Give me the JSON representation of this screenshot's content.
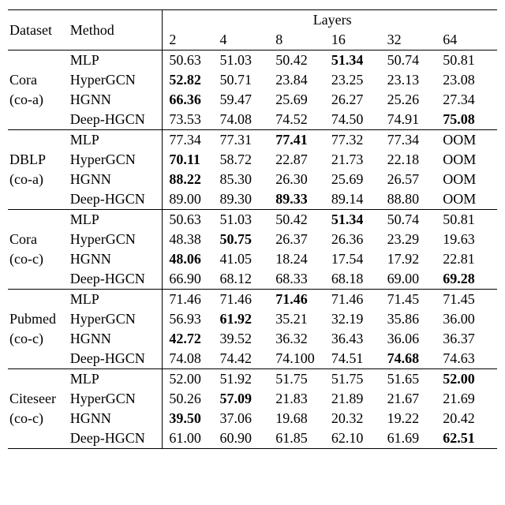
{
  "header": {
    "dataset": "Dataset",
    "method": "Method",
    "layers": "Layers",
    "cols": [
      "2",
      "4",
      "8",
      "16",
      "32",
      "64"
    ]
  },
  "groups": [
    {
      "dataset_line1": "Cora",
      "dataset_line2": "(co-a)",
      "rows": [
        {
          "method": "MLP",
          "v": [
            "50.63",
            "51.03",
            "50.42",
            "51.34",
            "50.74",
            "50.81"
          ],
          "bold": [
            false,
            false,
            false,
            true,
            false,
            false
          ]
        },
        {
          "method": "HyperGCN",
          "v": [
            "52.82",
            "50.71",
            "23.84",
            "23.25",
            "23.13",
            "23.08"
          ],
          "bold": [
            true,
            false,
            false,
            false,
            false,
            false
          ]
        },
        {
          "method": "HGNN",
          "v": [
            "66.36",
            "59.47",
            "25.69",
            "26.27",
            "25.26",
            "27.34"
          ],
          "bold": [
            true,
            false,
            false,
            false,
            false,
            false
          ]
        },
        {
          "method": "Deep-HGCN",
          "v": [
            "73.53",
            "74.08",
            "74.52",
            "74.50",
            "74.91",
            "75.08"
          ],
          "bold": [
            false,
            false,
            false,
            false,
            false,
            true
          ]
        }
      ]
    },
    {
      "dataset_line1": "DBLP",
      "dataset_line2": "(co-a)",
      "rows": [
        {
          "method": "MLP",
          "v": [
            "77.34",
            "77.31",
            "77.41",
            "77.32",
            "77.34",
            "OOM"
          ],
          "bold": [
            false,
            false,
            true,
            false,
            false,
            false
          ]
        },
        {
          "method": "HyperGCN",
          "v": [
            "70.11",
            "58.72",
            "22.87",
            "21.73",
            "22.18",
            "OOM"
          ],
          "bold": [
            true,
            false,
            false,
            false,
            false,
            false
          ]
        },
        {
          "method": "HGNN",
          "v": [
            "88.22",
            "85.30",
            "26.30",
            "25.69",
            "26.57",
            "OOM"
          ],
          "bold": [
            true,
            false,
            false,
            false,
            false,
            false
          ]
        },
        {
          "method": "Deep-HGCN",
          "v": [
            "89.00",
            "89.30",
            "89.33",
            "89.14",
            "88.80",
            "OOM"
          ],
          "bold": [
            false,
            false,
            true,
            false,
            false,
            false
          ]
        }
      ]
    },
    {
      "dataset_line1": "Cora",
      "dataset_line2": "(co-c)",
      "rows": [
        {
          "method": "MLP",
          "v": [
            "50.63",
            "51.03",
            "50.42",
            "51.34",
            "50.74",
            "50.81"
          ],
          "bold": [
            false,
            false,
            false,
            true,
            false,
            false
          ]
        },
        {
          "method": "HyperGCN",
          "v": [
            "48.38",
            "50.75",
            "26.37",
            "26.36",
            "23.29",
            "19.63"
          ],
          "bold": [
            false,
            true,
            false,
            false,
            false,
            false
          ]
        },
        {
          "method": "HGNN",
          "v": [
            "48.06",
            "41.05",
            "18.24",
            "17.54",
            "17.92",
            "22.81"
          ],
          "bold": [
            true,
            false,
            false,
            false,
            false,
            false
          ]
        },
        {
          "method": "Deep-HGCN",
          "v": [
            "66.90",
            "68.12",
            "68.33",
            "68.18",
            "69.00",
            "69.28"
          ],
          "bold": [
            false,
            false,
            false,
            false,
            false,
            true
          ]
        }
      ]
    },
    {
      "dataset_line1": "Pubmed",
      "dataset_line2": "(co-c)",
      "rows": [
        {
          "method": "MLP",
          "v": [
            "71.46",
            "71.46",
            "71.46",
            "71.46",
            "71.45",
            "71.45"
          ],
          "bold": [
            false,
            false,
            true,
            false,
            false,
            false
          ]
        },
        {
          "method": "HyperGCN",
          "v": [
            "56.93",
            "61.92",
            "35.21",
            "32.19",
            "35.86",
            "36.00"
          ],
          "bold": [
            false,
            true,
            false,
            false,
            false,
            false
          ]
        },
        {
          "method": "HGNN",
          "v": [
            "42.72",
            "39.52",
            "36.32",
            "36.43",
            "36.06",
            "36.37"
          ],
          "bold": [
            true,
            false,
            false,
            false,
            false,
            false
          ]
        },
        {
          "method": "Deep-HGCN",
          "v": [
            "74.08",
            "74.42",
            "74.100",
            "74.51",
            "74.68",
            "74.63"
          ],
          "bold": [
            false,
            false,
            false,
            false,
            true,
            false
          ]
        }
      ]
    },
    {
      "dataset_line1": "Citeseer",
      "dataset_line2": "(co-c)",
      "rows": [
        {
          "method": "MLP",
          "v": [
            "52.00",
            "51.92",
            "51.75",
            "51.75",
            "51.65",
            "52.00"
          ],
          "bold": [
            false,
            false,
            false,
            false,
            false,
            true
          ]
        },
        {
          "method": "HyperGCN",
          "v": [
            "50.26",
            "57.09",
            "21.83",
            "21.89",
            "21.67",
            "21.69"
          ],
          "bold": [
            false,
            true,
            false,
            false,
            false,
            false
          ]
        },
        {
          "method": "HGNN",
          "v": [
            "39.50",
            "37.06",
            "19.68",
            "20.32",
            "19.22",
            "20.42"
          ],
          "bold": [
            true,
            false,
            false,
            false,
            false,
            false
          ]
        },
        {
          "method": "Deep-HGCN",
          "v": [
            "61.00",
            "60.90",
            "61.85",
            "62.10",
            "61.69",
            "62.51"
          ],
          "bold": [
            false,
            false,
            false,
            false,
            false,
            true
          ]
        }
      ]
    }
  ],
  "style": {
    "font_family": "Times New Roman",
    "font_size_pt": 18,
    "rule_color": "#000000",
    "bg_color": "#ffffff"
  }
}
